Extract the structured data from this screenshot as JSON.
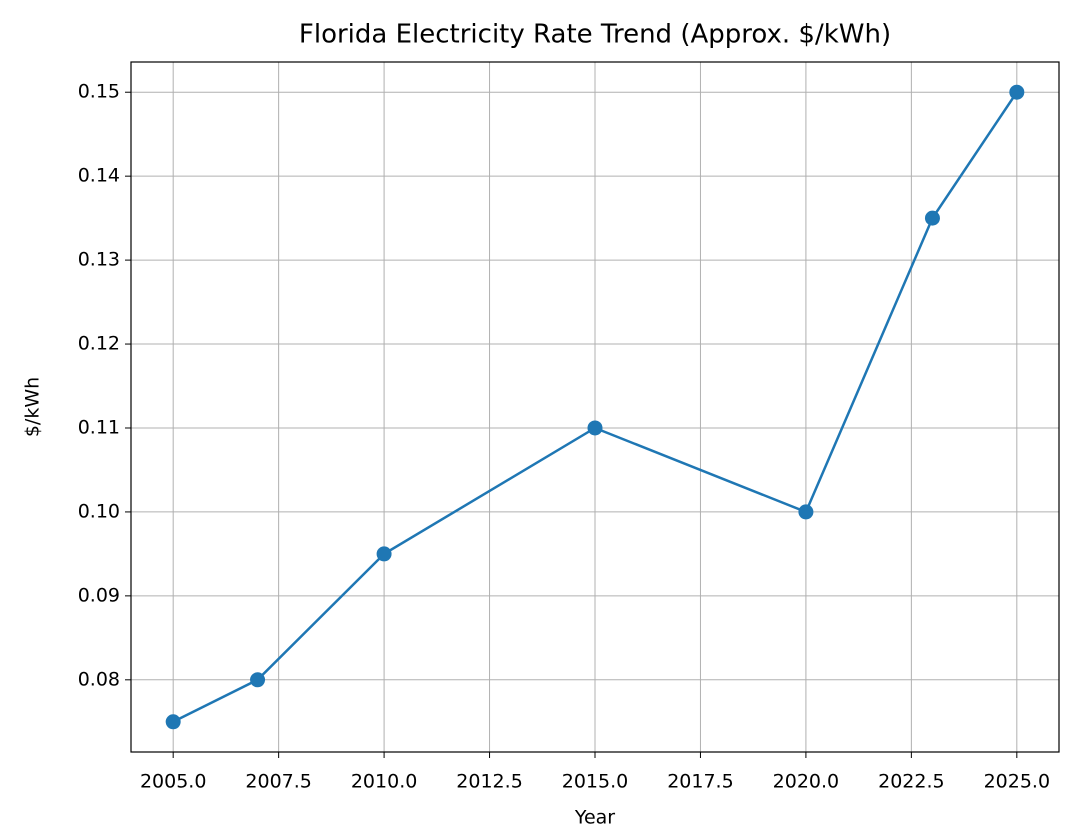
{
  "chart_data": {
    "type": "line",
    "title": "Florida Electricity Rate Trend (Approx. $/kWh)",
    "x_label": "Year",
    "y_label": "$/kWh",
    "x": [
      2005,
      2007,
      2010,
      2015,
      2020,
      2023,
      2025
    ],
    "values": [
      0.075,
      0.08,
      0.095,
      0.11,
      0.1,
      0.135,
      0.15
    ],
    "color": "#1f77b4",
    "xlim": [
      2004,
      2026
    ],
    "xticks": [
      {
        "value": 2005,
        "label": "2005.0"
      },
      {
        "value": 2007.5,
        "label": "2007.5"
      },
      {
        "value": 2010,
        "label": "2010.0"
      },
      {
        "value": 2012.5,
        "label": "2012.5"
      },
      {
        "value": 2015,
        "label": "2015.0"
      },
      {
        "value": 2017.5,
        "label": "2017.5"
      },
      {
        "value": 2020,
        "label": "2020.0"
      },
      {
        "value": 2022.5,
        "label": "2022.5"
      },
      {
        "value": 2025,
        "label": "2025.0"
      }
    ],
    "ylim": [
      0.0714,
      0.1536
    ],
    "yticks": [
      0.08,
      0.09,
      {
        "value": 0.1,
        "label": "0.10"
      },
      0.11,
      0.12,
      0.13,
      0.14,
      0.15
    ],
    "grid": true,
    "markers": true
  }
}
